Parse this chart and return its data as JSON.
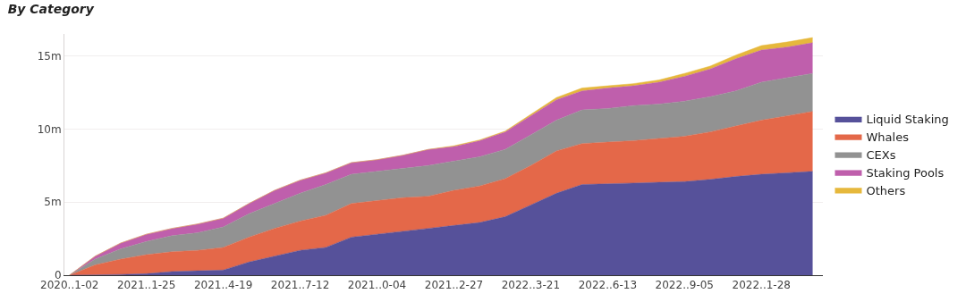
{
  "chart_data": {
    "type": "area",
    "stacked": true,
    "title": "By Category",
    "categories": [
      "2020..1-02",
      null,
      null,
      "2021..1-25",
      null,
      null,
      "2021..4-19",
      null,
      null,
      "2021..7-12",
      null,
      null,
      "2021..0-04",
      null,
      null,
      "2021..2-27",
      null,
      null,
      "2022..3-21",
      null,
      null,
      "2022..6-13",
      null,
      null,
      "2022..9-05",
      null,
      null,
      "2022..1-28",
      null,
      null
    ],
    "series": [
      {
        "name": "Liquid Staking",
        "color": "#56519a",
        "values": [
          0,
          0.02,
          0.05,
          0.1,
          0.25,
          0.3,
          0.35,
          0.9,
          1.3,
          1.7,
          1.9,
          2.6,
          2.8,
          3.0,
          3.2,
          3.4,
          3.6,
          4.0,
          4.8,
          5.6,
          6.2,
          6.25,
          6.3,
          6.35,
          6.4,
          6.55,
          6.75,
          6.9,
          7.0,
          7.1
        ]
      },
      {
        "name": "Whales",
        "color": "#e46849",
        "values": [
          0,
          0.68,
          1.05,
          1.3,
          1.35,
          1.4,
          1.55,
          1.7,
          1.9,
          2.0,
          2.2,
          2.3,
          2.3,
          2.3,
          2.2,
          2.4,
          2.5,
          2.6,
          2.7,
          2.9,
          2.8,
          2.85,
          2.9,
          3.0,
          3.1,
          3.25,
          3.45,
          3.7,
          3.9,
          4.1
        ]
      },
      {
        "name": "CEXs",
        "color": "#929292",
        "values": [
          0,
          0.4,
          0.7,
          0.9,
          1.1,
          1.2,
          1.4,
          1.6,
          1.7,
          1.9,
          2.1,
          2.0,
          2.0,
          2.0,
          2.1,
          2.0,
          2.0,
          2.0,
          2.1,
          2.1,
          2.3,
          2.3,
          2.4,
          2.35,
          2.4,
          2.4,
          2.4,
          2.6,
          2.6,
          2.6
        ]
      },
      {
        "name": "Staking Pools",
        "color": "#bf5fac",
        "values": [
          0,
          0.2,
          0.4,
          0.5,
          0.5,
          0.6,
          0.6,
          0.7,
          0.9,
          0.9,
          0.8,
          0.8,
          0.8,
          0.9,
          1.1,
          1.0,
          1.1,
          1.2,
          1.3,
          1.4,
          1.3,
          1.4,
          1.35,
          1.5,
          1.7,
          1.9,
          2.2,
          2.2,
          2.1,
          2.1
        ]
      },
      {
        "name": "Others",
        "color": "#e6b83c",
        "values": [
          0,
          0,
          0,
          0,
          0,
          0,
          0,
          0,
          0,
          0,
          0,
          0,
          0,
          0,
          0,
          0.05,
          0.05,
          0.05,
          0.1,
          0.15,
          0.2,
          0.15,
          0.15,
          0.15,
          0.2,
          0.2,
          0.25,
          0.3,
          0.35,
          0.35
        ]
      }
    ],
    "ylim": [
      0,
      16.5
    ],
    "yticks": [
      0,
      {
        "value": 5,
        "label": "5m"
      },
      {
        "value": 10,
        "label": "10m"
      },
      {
        "value": 15,
        "label": "15m"
      }
    ],
    "grid": "y",
    "legend": "right"
  }
}
